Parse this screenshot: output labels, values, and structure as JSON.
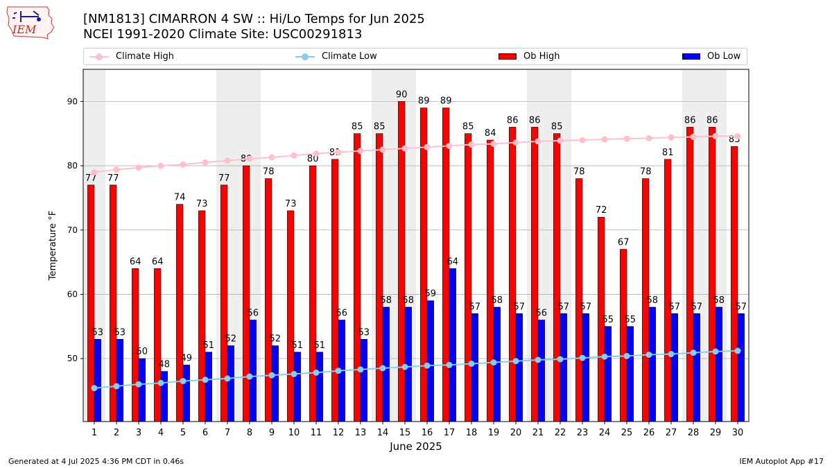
{
  "header": {
    "logo_text": "IEM",
    "title_line1": "[NM1813] CIMARRON 4 SW :: Hi/Lo Temps for Jun 2025",
    "title_line2": "NCEI 1991-2020 Climate Site: USC00291813"
  },
  "legend": {
    "climate_high": "Climate High",
    "climate_low": "Climate Low",
    "ob_high": "Ob High",
    "ob_low": "Ob Low"
  },
  "footer": {
    "left": "Generated at 4 Jul 2025 4:36 PM CDT in 0.46s",
    "right": "IEM Autoplot App #17"
  },
  "colors": {
    "ob_high": "#ff0000",
    "ob_low": "#0000ff",
    "climate_high": "#ffc0cb",
    "climate_low": "#87ceeb",
    "weekend_shade": "#eeeeee",
    "grid": "#b0b0b0"
  },
  "chart_data": {
    "type": "bar",
    "xlabel": "June 2025",
    "ylabel": "Temperature °F",
    "ylim": [
      40.2,
      95
    ],
    "yticks": [
      50,
      60,
      70,
      80,
      90
    ],
    "grid": "horizontal",
    "legend_position": "top",
    "categories": [
      "1",
      "2",
      "3",
      "4",
      "5",
      "6",
      "7",
      "8",
      "9",
      "10",
      "11",
      "12",
      "13",
      "14",
      "15",
      "16",
      "17",
      "18",
      "19",
      "20",
      "21",
      "22",
      "23",
      "24",
      "25",
      "26",
      "27",
      "28",
      "29",
      "30"
    ],
    "weekend_shading": [
      [
        1,
        1
      ],
      [
        7,
        8
      ],
      [
        14,
        15
      ],
      [
        21,
        22
      ],
      [
        28,
        29
      ]
    ],
    "series": [
      {
        "name": "Ob High",
        "kind": "bar",
        "values": [
          77,
          77,
          64,
          64,
          74,
          73,
          77,
          80,
          78,
          73,
          80,
          81,
          85,
          85,
          90,
          89,
          89,
          85,
          84,
          86,
          86,
          85,
          78,
          72,
          67,
          78,
          81,
          86,
          86,
          83
        ]
      },
      {
        "name": "Ob Low",
        "kind": "bar",
        "values": [
          53,
          53,
          50,
          48,
          49,
          51,
          52,
          56,
          52,
          51,
          51,
          56,
          53,
          58,
          58,
          59,
          64,
          57,
          58,
          57,
          56,
          57,
          57,
          55,
          55,
          58,
          57,
          57,
          58,
          57
        ]
      },
      {
        "name": "Climate High",
        "kind": "line",
        "values": [
          79.0,
          79.4,
          79.7,
          80.0,
          80.2,
          80.5,
          80.8,
          81.1,
          81.3,
          81.6,
          81.9,
          82.1,
          82.3,
          82.5,
          82.7,
          82.9,
          83.1,
          83.3,
          83.4,
          83.6,
          83.8,
          83.9,
          84.0,
          84.1,
          84.2,
          84.3,
          84.4,
          84.5,
          84.6,
          84.6
        ]
      },
      {
        "name": "Climate Low",
        "kind": "line",
        "values": [
          45.4,
          45.7,
          46.0,
          46.2,
          46.5,
          46.7,
          46.9,
          47.2,
          47.4,
          47.6,
          47.8,
          48.1,
          48.3,
          48.5,
          48.7,
          48.9,
          49.0,
          49.2,
          49.4,
          49.6,
          49.8,
          49.9,
          50.1,
          50.3,
          50.4,
          50.6,
          50.7,
          50.9,
          51.1,
          51.2
        ]
      }
    ]
  }
}
